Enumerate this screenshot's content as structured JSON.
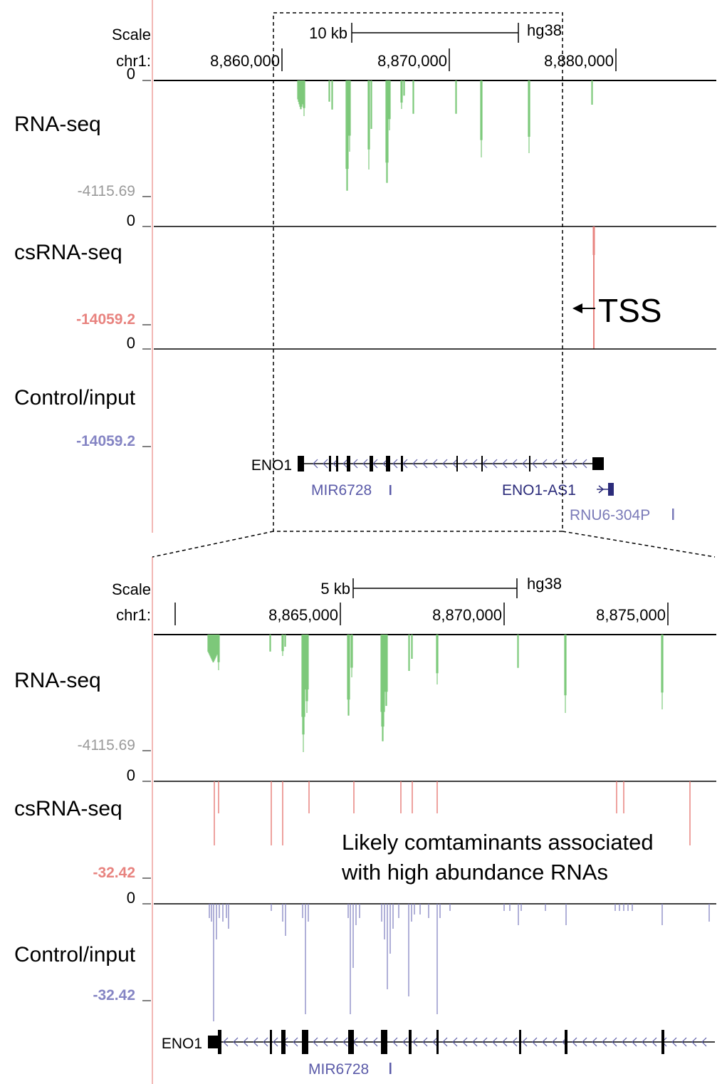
{
  "colors": {
    "rna": "#7dc97a",
    "csrna": "#e8837f",
    "control": "#8585c4",
    "gene": "#000000",
    "gene_label_alt": "#5a5aa8",
    "gene_label_dark": "#2b2b7a",
    "gray_label": "#9a9a9a",
    "left_rule": "#f2b8b5"
  },
  "top": {
    "scale_label": "Scale",
    "scale_text": "10 kb",
    "assembly": "hg38",
    "chrom_label": "chr1:",
    "positions": [
      "8,860,000",
      "8,870,000",
      "8,880,000"
    ],
    "tracks": {
      "rna": {
        "name": "RNA-seq",
        "zero": "0",
        "min": "-4115.69"
      },
      "csrna": {
        "name": "csRNA-seq",
        "zero": "0",
        "min": "-14059.2"
      },
      "control": {
        "name": "Control/input",
        "zero": "0",
        "min": "-14059.2"
      }
    },
    "tss_label": "TSS",
    "genes": {
      "eno1": "ENO1",
      "mir": "MIR6728",
      "eno1_as1": "ENO1-AS1",
      "rnu6": "RNU6-304P"
    }
  },
  "bottom": {
    "scale_label": "Scale",
    "scale_text": "5 kb",
    "assembly": "hg38",
    "chrom_label": "chr1:",
    "positions": [
      "8,865,000",
      "8,870,000",
      "8,875,000"
    ],
    "tracks": {
      "rna": {
        "name": "RNA-seq",
        "zero": "0",
        "min": "-4115.69"
      },
      "csrna": {
        "name": "csRNA-seq",
        "zero": "0",
        "min": "-32.42"
      },
      "control": {
        "name": "Control/input",
        "zero": "0",
        "min": "-32.42"
      }
    },
    "annotation_line1": "Likely comtaminants associated",
    "annotation_line2": "with high abundance RNAs",
    "genes": {
      "eno1": "ENO1",
      "mir": "MIR6728"
    }
  }
}
